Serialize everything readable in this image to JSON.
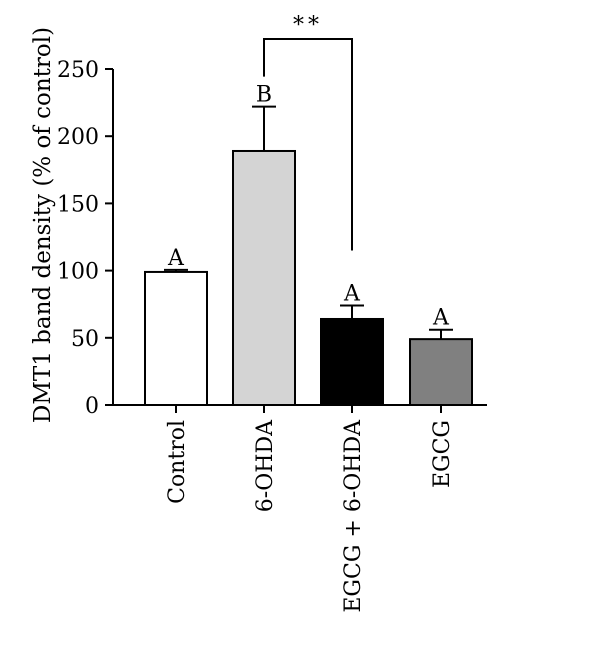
{
  "chart_data": {
    "type": "bar",
    "title": "",
    "xlabel": "",
    "ylabel": "DMT1 band density (% of control)",
    "ylim": [
      0,
      250
    ],
    "yticks": [
      0,
      50,
      100,
      150,
      200,
      250
    ],
    "categories": [
      "Control",
      "6-OHDA",
      "EGCG + 6-OHDA",
      "EGCG"
    ],
    "values": [
      99,
      189,
      64,
      49
    ],
    "errors": [
      1.5,
      33,
      10,
      7
    ],
    "letters": [
      "A",
      "B",
      "A",
      "A"
    ],
    "bar_colors": [
      "#ffffff",
      "#d4d4d4",
      "#000000",
      "#808080"
    ],
    "significance": {
      "from": "6-OHDA",
      "to": "EGCG + 6-OHDA",
      "label": "**"
    },
    "grid": false,
    "legend": "none"
  }
}
